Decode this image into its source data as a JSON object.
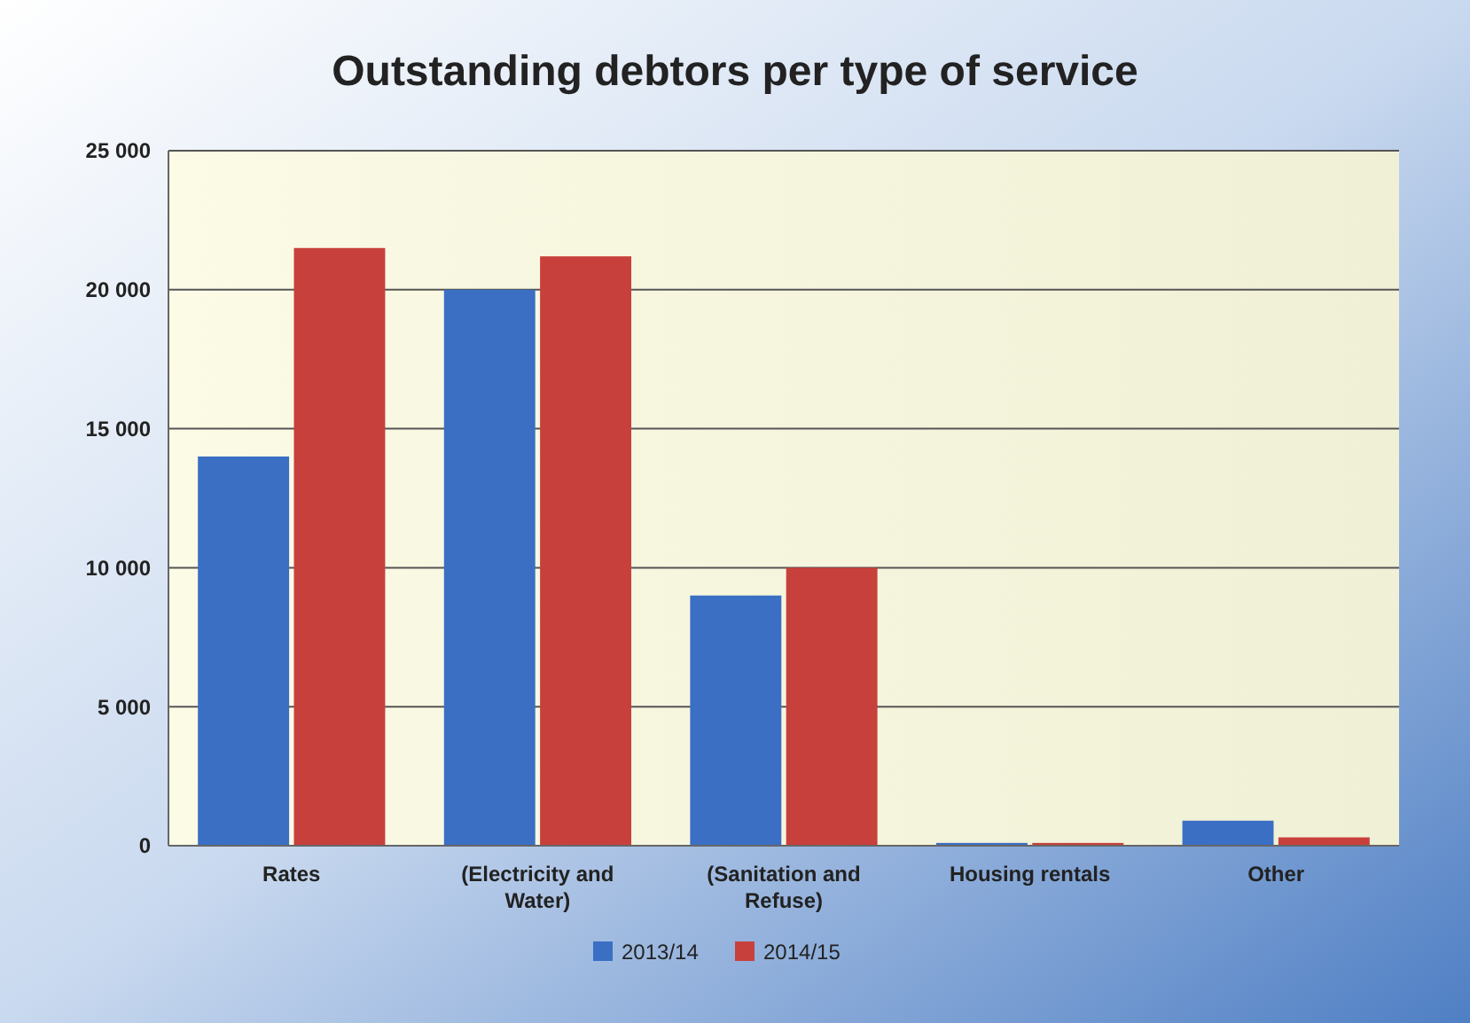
{
  "chart_data": {
    "type": "bar",
    "title": "Outstanding debtors per type of service",
    "categories": [
      "Rates",
      "(Electricity and Water)",
      "(Sanitation and Refuse)",
      "Housing rentals",
      "Other"
    ],
    "series": [
      {
        "name": "2013/14",
        "color": "#3a6fc4",
        "values": [
          14000,
          20000,
          9000,
          100,
          900
        ]
      },
      {
        "name": "2014/15",
        "color": "#c8403c",
        "values": [
          21500,
          21200,
          10000,
          100,
          300
        ]
      }
    ],
    "ylim": [
      0,
      25000
    ],
    "yticks": [
      {
        "value": 0,
        "label": "0"
      },
      {
        "value": 5000,
        "label": "5 000"
      },
      {
        "value": 10000,
        "label": "10 000"
      },
      {
        "value": 15000,
        "label": "15 000"
      },
      {
        "value": 20000,
        "label": "20 000"
      },
      {
        "value": 25000,
        "label": "25 000"
      }
    ],
    "grid": "y",
    "legend": "bottom"
  }
}
